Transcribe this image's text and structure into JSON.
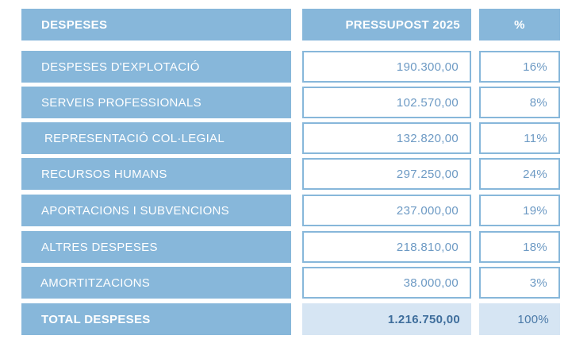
{
  "header": {
    "col_label": "DESPESES",
    "col_amount": "PRESSUPOST 2025",
    "col_pct": "%"
  },
  "rows": [
    {
      "label": "DESPESES D'EXPLOTACIÓ",
      "amount": "190.300,00",
      "pct": "16%"
    },
    {
      "label": "SERVEIS PROFESSIONALS",
      "amount": "102.570,00",
      "pct": "8%"
    },
    {
      "label": "REPRESENTACIÓ COL·LEGIAL",
      "amount": "132.820,00",
      "pct": "11%"
    },
    {
      "label": "RECURSOS HUMANS",
      "amount": "297.250,00",
      "pct": "24%"
    },
    {
      "label": "APORTACIONS I SUBVENCIONS",
      "amount": "237.000,00",
      "pct": "19%"
    },
    {
      "label": "ALTRES DESPESES",
      "amount": "218.810,00",
      "pct": "18%"
    },
    {
      "label": "AMORTITZACIONS",
      "amount": "38.000,00",
      "pct": "3%"
    }
  ],
  "total": {
    "label": "TOTAL DESPESES",
    "amount": "1.216.750,00",
    "pct": "100%"
  },
  "colors": {
    "accent": "#87b7da",
    "total_fill": "#d6e5f3",
    "value_text": "#6d9ac4"
  }
}
